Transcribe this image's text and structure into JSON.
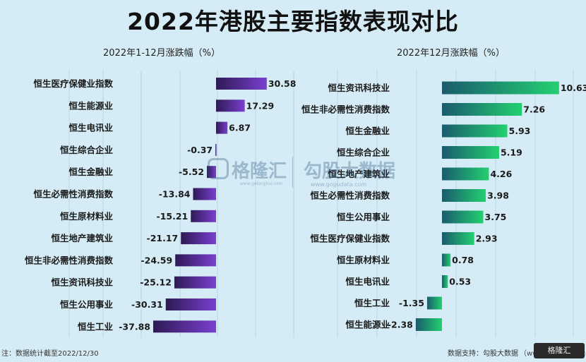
{
  "page": {
    "title": "2022年港股主要指数表现对比",
    "footer_note": "注：数据统计截至2022/12/30",
    "footer_source": "数据支持：勾股大数据",
    "footer_source_url": "（www.gogudata.com）",
    "corner_logo": "格隆汇",
    "watermark": {
      "brand1": "格隆汇",
      "url1": "www.gelonghui.com",
      "brand2": "勾股大数据",
      "url2": "www.gogudata.com"
    }
  },
  "chart_data": [
    {
      "type": "bar",
      "orientation": "horizontal",
      "title": "2022年1-12月涨跌幅（%）",
      "categories": [
        "恒生医疗保健业指数",
        "恒生能源业",
        "恒生电讯业",
        "恒生综合企业",
        "恒生金融业",
        "恒生必需性消费指数",
        "恒生原材料业",
        "恒生地产建筑业",
        "恒生非必需性消费指数",
        "恒生资讯科技业",
        "恒生公用事业",
        "恒生工业"
      ],
      "values": [
        30.58,
        17.29,
        6.87,
        -0.37,
        -5.52,
        -13.84,
        -15.21,
        -21.17,
        -24.59,
        -25.12,
        -30.31,
        -37.88
      ],
      "value_labels": [
        "30.58",
        "17.29",
        "6.87",
        "-0.37",
        "-5.52",
        "-13.84",
        "-15.21",
        "-21.17",
        "-24.59",
        "-25.12",
        "-30.31",
        "-37.88"
      ],
      "color": "#5b2d9e",
      "gradient": [
        "#2e1a55",
        "#7a3fd0"
      ],
      "xlim": [
        -40,
        35
      ],
      "grid": true
    },
    {
      "type": "bar",
      "orientation": "horizontal",
      "title": "2022年12月涨跌幅（%）",
      "categories": [
        "恒生资讯科技业",
        "恒生非必需性消费指数",
        "恒生金融业",
        "恒生综合企业",
        "恒生地产建筑业",
        "恒生必需性消费指数",
        "恒生公用事业",
        "恒生医疗保健业指数",
        "恒生原材料业",
        "恒生电讯业",
        "恒生工业",
        "恒生能源业"
      ],
      "values": [
        10.63,
        7.26,
        5.93,
        5.19,
        4.26,
        3.98,
        3.75,
        2.93,
        0.78,
        0.53,
        -1.35,
        -2.38
      ],
      "value_labels": [
        "10.63",
        "7.26",
        "5.93",
        "5.19",
        "4.26",
        "3.98",
        "3.75",
        "2.93",
        "0.78",
        "0.53",
        "-1.35",
        "-2.38"
      ],
      "color": "#1fbf6a",
      "gradient": [
        "#1a5b6e",
        "#22d070"
      ],
      "xlim": [
        -3,
        11
      ],
      "grid": true
    }
  ]
}
